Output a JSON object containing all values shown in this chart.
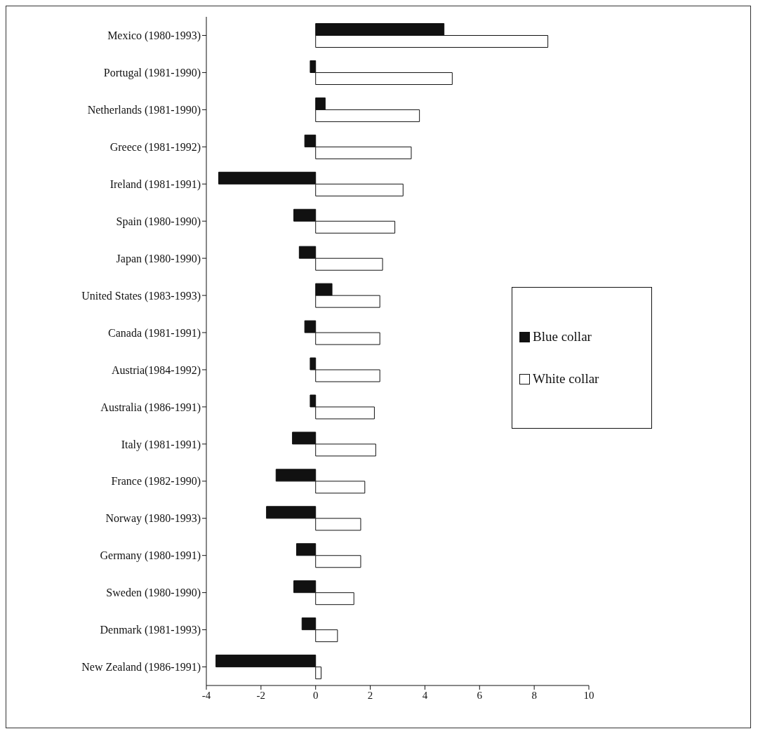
{
  "chart_data": {
    "type": "bar",
    "orientation": "horizontal",
    "categories": [
      "Mexico (1980-1993)",
      "Portugal (1981-1990)",
      "Netherlands (1981-1990)",
      "Greece (1981-1992)",
      "Ireland (1981-1991)",
      "Spain (1980-1990)",
      "Japan (1980-1990)",
      "United States (1983-1993)",
      "Canada (1981-1991)",
      "Austria(1984-1992)",
      "Australia (1986-1991)",
      "Italy (1981-1991)",
      "France (1982-1990)",
      "Norway (1980-1993)",
      "Germany (1980-1991)",
      "Sweden (1980-1990)",
      "Denmark (1981-1993)",
      "New Zealand (1986-1991)"
    ],
    "series": [
      {
        "name": "Blue collar",
        "color": "#111111",
        "values": [
          4.7,
          -0.2,
          0.35,
          -0.4,
          -3.55,
          -0.8,
          -0.6,
          0.6,
          -0.4,
          -0.2,
          -0.2,
          -0.85,
          -1.45,
          -1.8,
          -0.7,
          -0.8,
          -0.5,
          -3.65
        ]
      },
      {
        "name": "White collar",
        "color": "#ffffff",
        "values": [
          8.5,
          5.0,
          3.8,
          3.5,
          3.2,
          2.9,
          2.45,
          2.35,
          2.35,
          2.35,
          2.15,
          2.2,
          1.8,
          1.65,
          1.65,
          1.4,
          0.8,
          0.2
        ]
      }
    ],
    "xlim": [
      -4,
      10
    ],
    "xticks": [
      -4,
      -2,
      0,
      2,
      4,
      6,
      8,
      10
    ],
    "grid": false,
    "legend": "right"
  }
}
